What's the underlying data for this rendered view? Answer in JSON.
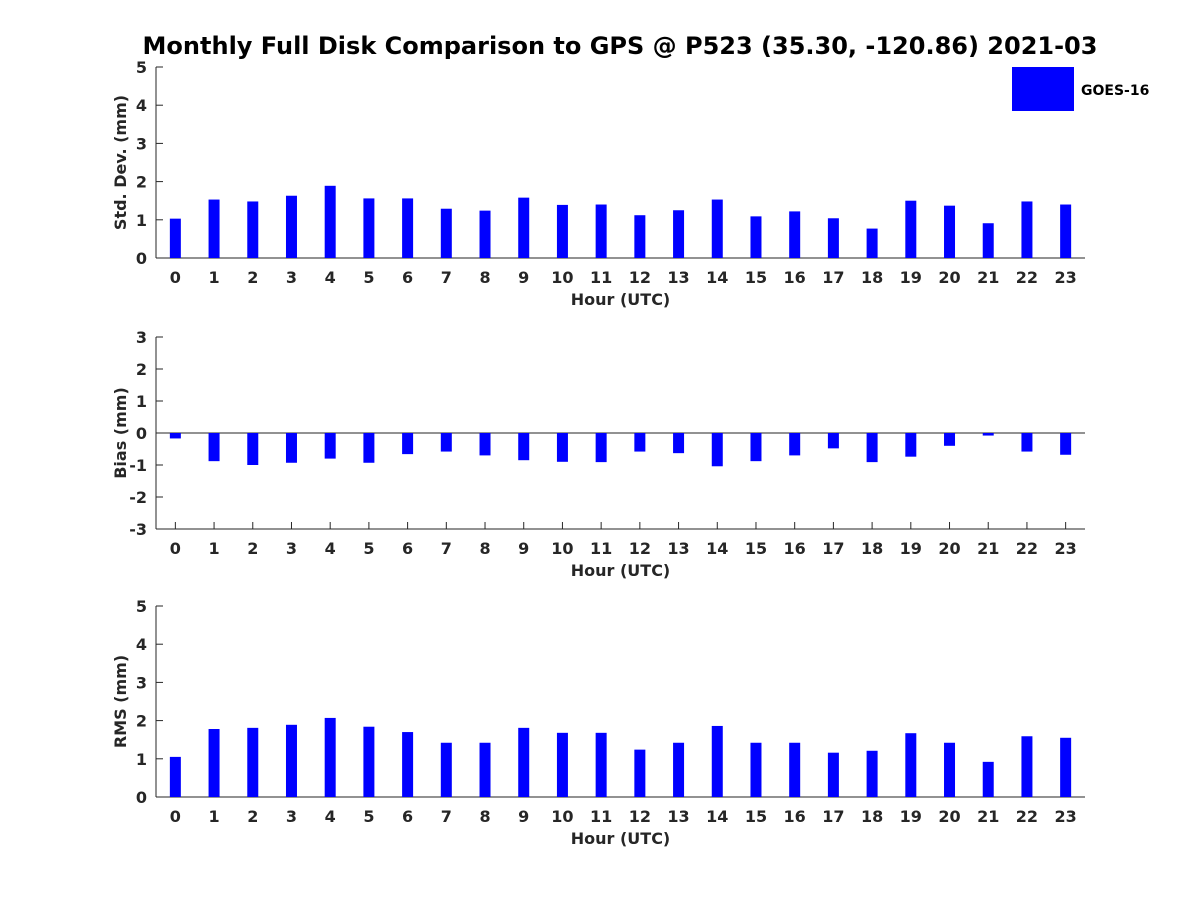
{
  "figure_title": "Monthly Full Disk Comparison to GPS @ P523 (35.30, -120.86) 2021-03",
  "legend_label": "GOES-16",
  "bar_color": "#0000ff",
  "chart_data": [
    {
      "type": "bar",
      "xlabel": "Hour (UTC)",
      "ylabel": "Std. Dev. (mm)",
      "ylim": [
        0,
        5
      ],
      "yticks": [
        0,
        1,
        2,
        3,
        4,
        5
      ],
      "categories": [
        "0",
        "1",
        "2",
        "3",
        "4",
        "5",
        "6",
        "7",
        "8",
        "9",
        "10",
        "11",
        "12",
        "13",
        "14",
        "15",
        "16",
        "17",
        "18",
        "19",
        "20",
        "21",
        "22",
        "23"
      ],
      "series": [
        {
          "name": "GOES-16",
          "values": [
            1.03,
            1.53,
            1.48,
            1.63,
            1.89,
            1.56,
            1.56,
            1.29,
            1.24,
            1.58,
            1.39,
            1.4,
            1.12,
            1.25,
            1.53,
            1.09,
            1.22,
            1.04,
            0.77,
            1.5,
            1.37,
            0.91,
            1.48,
            1.4
          ]
        }
      ]
    },
    {
      "type": "bar",
      "xlabel": "Hour (UTC)",
      "ylabel": "Bias (mm)",
      "ylim": [
        -3,
        3
      ],
      "yticks": [
        -3,
        -2,
        -1,
        0,
        1,
        2,
        3
      ],
      "categories": [
        "0",
        "1",
        "2",
        "3",
        "4",
        "5",
        "6",
        "7",
        "8",
        "9",
        "10",
        "11",
        "12",
        "13",
        "14",
        "15",
        "16",
        "17",
        "18",
        "19",
        "20",
        "21",
        "22",
        "23"
      ],
      "series": [
        {
          "name": "GOES-16",
          "values": [
            -0.17,
            -0.88,
            -1.0,
            -0.93,
            -0.8,
            -0.93,
            -0.66,
            -0.58,
            -0.7,
            -0.85,
            -0.9,
            -0.91,
            -0.58,
            -0.63,
            -1.04,
            -0.88,
            -0.7,
            -0.48,
            -0.91,
            -0.74,
            -0.4,
            -0.08,
            -0.58,
            -0.68
          ]
        }
      ]
    },
    {
      "type": "bar",
      "xlabel": "Hour (UTC)",
      "ylabel": "RMS (mm)",
      "ylim": [
        0,
        5
      ],
      "yticks": [
        0,
        1,
        2,
        3,
        4,
        5
      ],
      "categories": [
        "0",
        "1",
        "2",
        "3",
        "4",
        "5",
        "6",
        "7",
        "8",
        "9",
        "10",
        "11",
        "12",
        "13",
        "14",
        "15",
        "16",
        "17",
        "18",
        "19",
        "20",
        "21",
        "22",
        "23"
      ],
      "series": [
        {
          "name": "GOES-16",
          "values": [
            1.05,
            1.78,
            1.81,
            1.89,
            2.07,
            1.84,
            1.7,
            1.42,
            1.42,
            1.81,
            1.68,
            1.68,
            1.24,
            1.42,
            1.86,
            1.42,
            1.42,
            1.16,
            1.21,
            1.67,
            1.42,
            0.92,
            1.59,
            1.55
          ]
        }
      ]
    }
  ]
}
